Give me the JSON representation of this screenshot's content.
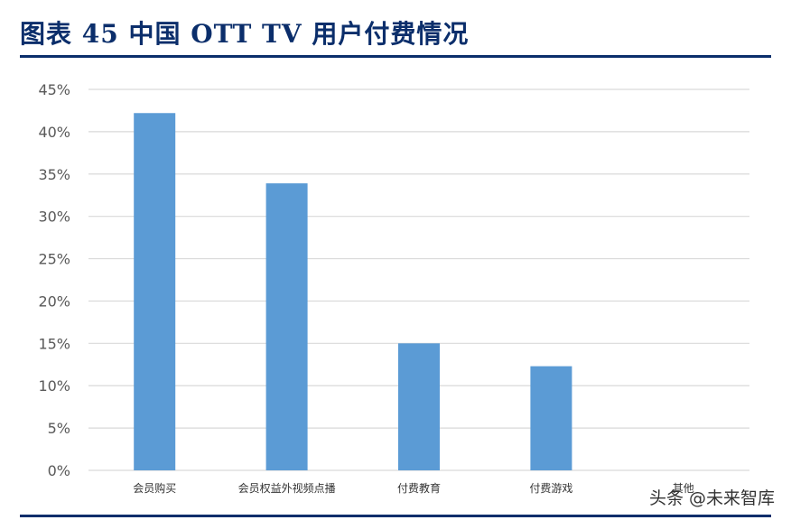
{
  "header": {
    "title": "图表 45  中国 OTT TV 用户付费情况"
  },
  "watermark": {
    "text": "头条 @未来智库"
  },
  "colors": {
    "title": "#0b2e6b",
    "rule": "#0b2e6b",
    "bar": "#5b9bd5",
    "grid": "#d9d9d9",
    "tick_text": "#595959"
  },
  "chart_data": {
    "type": "bar",
    "title": "",
    "xlabel": "",
    "ylabel": "",
    "categories": [
      "会员购买",
      "会员权益外视频点播",
      "付费教育",
      "付费游戏",
      "其他"
    ],
    "values": [
      42.2,
      33.9,
      15.0,
      12.3,
      0
    ],
    "ylim": [
      0,
      45
    ],
    "yticks": [
      "0%",
      "5%",
      "10%",
      "15%",
      "20%",
      "25%",
      "30%",
      "35%",
      "40%",
      "45%"
    ],
    "ytick_values": [
      0,
      5,
      10,
      15,
      20,
      25,
      30,
      35,
      40,
      45
    ],
    "grid": true,
    "legend": "none"
  }
}
